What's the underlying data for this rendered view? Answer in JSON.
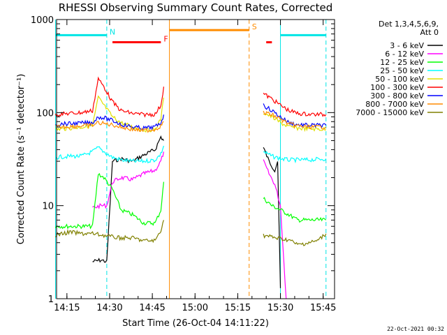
{
  "chart_data": {
    "type": "line",
    "title": "RHESSI Observing Summary Count Rates, Corrected",
    "xlabel": "Start Time (26-Oct-04 14:11:22)",
    "ylabel": "Corrected Count Rate (s⁻¹ detector⁻¹)",
    "yscale": "log",
    "ylim": [
      1,
      1000
    ],
    "xlim": [
      "14:11:22",
      "15:49:00"
    ],
    "x_ticks": [
      "14:15",
      "14:30",
      "14:45",
      "15:00",
      "15:15",
      "15:30",
      "15:45"
    ],
    "y_ticks": [
      "1",
      "10",
      "100",
      "1000"
    ],
    "legend_header": [
      "Det 1,3,4,5,6,9,",
      "Att 0"
    ],
    "footer_date": "22-Oct-2021 00:32",
    "flags": [
      {
        "letter": "N",
        "color": "#00e5e5",
        "segments": [
          [
            "14:11",
            "14:29"
          ],
          [
            "15:30",
            "15:46"
          ]
        ],
        "y_level": 680,
        "vlines": [
          "14:11",
          "14:29",
          "15:30",
          "15:46"
        ],
        "vline_style": "mixed"
      },
      {
        "letter": "F",
        "color": "#ff0000",
        "segments": [
          [
            "14:31",
            "14:48"
          ],
          [
            "15:25",
            "15:27"
          ]
        ],
        "y_level": 570
      },
      {
        "letter": "S",
        "color": "#ff8c00",
        "segments": [
          [
            "14:51",
            "15:19"
          ]
        ],
        "y_level": 770,
        "vlines": [
          "14:51",
          "15:19"
        ]
      }
    ],
    "series": [
      {
        "name": "3 - 6 keV",
        "color": "#000000",
        "x": [
          "14:24",
          "14:27",
          "14:29",
          "14:31",
          "14:34",
          "14:38",
          "14:42",
          "14:46",
          "14:48",
          "14:49",
          "15:24",
          "15:26",
          "15:28",
          "15:29",
          "15:30"
        ],
        "y": [
          2.5,
          2.6,
          2.5,
          30,
          32,
          30,
          35,
          40,
          55,
          50,
          42,
          30,
          24,
          30,
          1.3
        ]
      },
      {
        "name": "6 - 12 keV",
        "color": "#ff00ff",
        "x": [
          "14:24",
          "14:27",
          "14:29",
          "14:31",
          "14:34",
          "14:38",
          "14:42",
          "14:46",
          "14:48",
          "14:49",
          "15:24",
          "15:26",
          "15:28",
          "15:30",
          "15:32"
        ],
        "y": [
          9.5,
          10,
          10,
          18,
          20,
          19,
          22,
          24,
          30,
          38,
          30,
          22,
          17,
          10,
          1.0
        ]
      },
      {
        "name": "12 - 25 keV",
        "color": "#00ff00",
        "x": [
          "14:11",
          "14:16",
          "14:20",
          "14:24",
          "14:26",
          "14:28",
          "14:31",
          "14:34",
          "14:38",
          "14:42",
          "14:46",
          "14:48",
          "14:49",
          "15:24",
          "15:27",
          "15:30",
          "15:33",
          "15:36",
          "15:40",
          "15:46"
        ],
        "y": [
          6,
          6,
          6,
          6,
          22,
          20,
          15,
          9,
          8,
          6.5,
          6.5,
          9,
          18,
          12,
          10,
          9,
          8,
          7,
          7,
          7
        ]
      },
      {
        "name": "25 - 50 keV",
        "color": "#00ffff",
        "x": [
          "14:11",
          "14:16",
          "14:20",
          "14:24",
          "14:26",
          "14:28",
          "14:31",
          "14:34",
          "14:38",
          "14:42",
          "14:46",
          "14:48",
          "14:49",
          "15:24",
          "15:27",
          "15:30",
          "15:33",
          "15:36",
          "15:40",
          "15:46"
        ],
        "y": [
          33,
          34,
          34,
          38,
          42,
          38,
          33,
          31,
          30,
          30,
          31,
          36,
          44,
          38,
          34,
          32,
          31,
          31,
          31,
          32
        ]
      },
      {
        "name": "50 - 100 keV",
        "color": "#e0e000",
        "x": [
          "14:11",
          "14:16",
          "14:20",
          "14:24",
          "14:26",
          "14:28",
          "14:31",
          "14:34",
          "14:38",
          "14:42",
          "14:46",
          "14:48",
          "14:49",
          "15:24",
          "15:27",
          "15:30",
          "15:33",
          "15:36",
          "15:40",
          "15:46"
        ],
        "y": [
          66,
          68,
          70,
          72,
          145,
          120,
          90,
          78,
          70,
          65,
          66,
          85,
          145,
          100,
          90,
          78,
          70,
          68,
          67,
          66
        ]
      },
      {
        "name": "100 - 300 keV",
        "color": "#ff0000",
        "x": [
          "14:11",
          "14:16",
          "14:20",
          "14:24",
          "14:26",
          "14:28",
          "14:31",
          "14:34",
          "14:38",
          "14:42",
          "14:46",
          "14:48",
          "14:49",
          "15:24",
          "15:27",
          "15:30",
          "15:33",
          "15:36",
          "15:40",
          "15:46"
        ],
        "y": [
          95,
          98,
          100,
          105,
          230,
          190,
          130,
          105,
          98,
          95,
          96,
          120,
          190,
          160,
          140,
          120,
          105,
          98,
          96,
          95
        ]
      },
      {
        "name": "300 - 800 keV",
        "color": "#0000ff",
        "x": [
          "14:11",
          "14:16",
          "14:20",
          "14:24",
          "14:26",
          "14:28",
          "14:31",
          "14:34",
          "14:38",
          "14:42",
          "14:46",
          "14:48",
          "14:49",
          "15:24",
          "15:27",
          "15:30",
          "15:33",
          "15:36",
          "15:40",
          "15:46"
        ],
        "y": [
          75,
          76,
          77,
          78,
          90,
          88,
          82,
          75,
          70,
          68,
          70,
          78,
          95,
          120,
          105,
          90,
          78,
          74,
          73,
          73
        ]
      },
      {
        "name": "800 - 7000 keV",
        "color": "#ff8c00",
        "x": [
          "14:11",
          "14:16",
          "14:20",
          "14:24",
          "14:26",
          "14:28",
          "14:31",
          "14:34",
          "14:38",
          "14:42",
          "14:46",
          "14:48",
          "14:49",
          "15:24",
          "15:27",
          "15:30",
          "15:33",
          "15:36",
          "15:40",
          "15:46"
        ],
        "y": [
          70,
          71,
          72,
          73,
          78,
          76,
          74,
          70,
          66,
          64,
          66,
          72,
          80,
          100,
          95,
          85,
          75,
          72,
          70,
          70
        ]
      },
      {
        "name": "7000 - 15000 keV",
        "color": "#808000",
        "x": [
          "14:11",
          "14:16",
          "14:20",
          "14:24",
          "14:28",
          "14:31",
          "14:34",
          "14:38",
          "14:42",
          "14:46",
          "14:48",
          "14:49",
          "15:24",
          "15:27",
          "15:30",
          "15:33",
          "15:36",
          "15:40",
          "15:43",
          "15:46"
        ],
        "y": [
          4.8,
          5.2,
          5.0,
          5.0,
          4.8,
          4.6,
          4.5,
          4.5,
          4.2,
          4.2,
          5.5,
          7.0,
          4.8,
          4.6,
          4.4,
          4.3,
          3.8,
          4.0,
          4.2,
          5.0
        ]
      }
    ]
  }
}
